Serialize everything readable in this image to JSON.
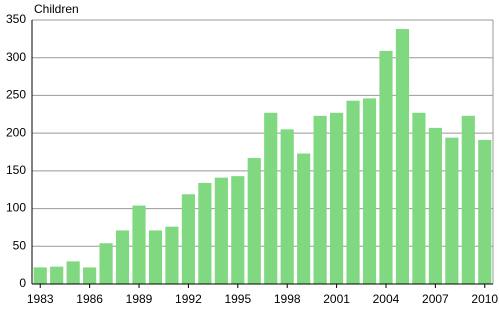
{
  "chart_data": {
    "type": "bar",
    "y_label": "Children",
    "categories": [
      "1983",
      null,
      null,
      "1986",
      null,
      null,
      "1989",
      null,
      null,
      "1992",
      null,
      null,
      "1995",
      null,
      null,
      "1998",
      null,
      null,
      "2001",
      null,
      null,
      "2004",
      null,
      null,
      "2007",
      null,
      null,
      "2010"
    ],
    "values": [
      22,
      23,
      30,
      22,
      54,
      71,
      104,
      71,
      76,
      119,
      134,
      141,
      143,
      167,
      227,
      205,
      173,
      223,
      227,
      243,
      246,
      309,
      338,
      227,
      207,
      194,
      223,
      191
    ],
    "color": "#80d880",
    "ylim": [
      0,
      350
    ],
    "yticks": [
      0,
      50,
      100,
      150,
      200,
      250,
      300,
      350
    ],
    "grid": true
  }
}
